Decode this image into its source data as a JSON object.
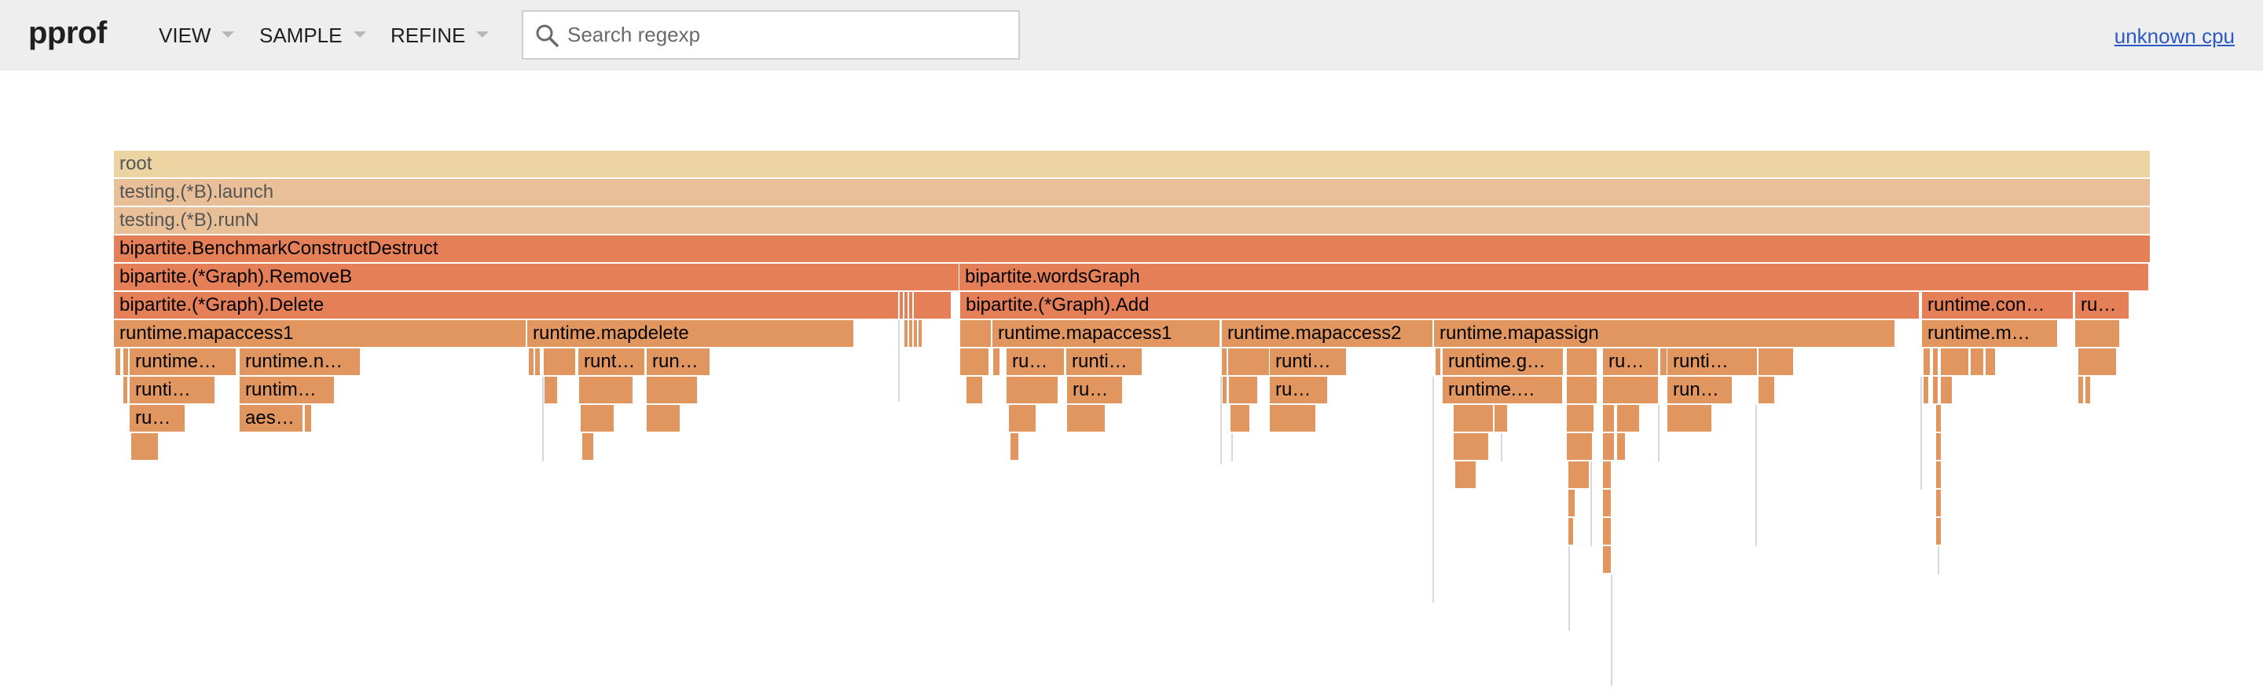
{
  "header": {
    "logo": "pprof",
    "menus": [
      {
        "label": "VIEW"
      },
      {
        "label": "SAMPLE"
      },
      {
        "label": "REFINE"
      }
    ],
    "search": {
      "placeholder": "Search regexp",
      "value": ""
    },
    "cpu_link": "unknown cpu"
  },
  "flame": {
    "frames": {
      "root": "root",
      "launch": "testing.(*B).launch",
      "runN": "testing.(*B).runN",
      "bench": "bipartite.BenchmarkConstructDestruct",
      "removeB": "bipartite.(*Graph).RemoveB",
      "wordsGraph": "bipartite.wordsGraph",
      "delete": "bipartite.(*Graph).Delete",
      "add": "bipartite.(*Graph).Add",
      "mapaccess1_a": "runtime.mapaccess1",
      "mapdelete": "runtime.mapdelete",
      "mapaccess1_b": "runtime.mapaccess1",
      "mapaccess2": "runtime.mapaccess2",
      "mapassign": "runtime.mapassign",
      "runtime_con": "runtime.con…",
      "ru_top": "ru…",
      "runtime_m": "runtime.m…",
      "r6_a": "runtime…",
      "r6_b": "runtime.n…",
      "r6_c": "runt…",
      "r6_d": "run…",
      "r6_e": "ru…",
      "r6_f": "runti…",
      "r6_g": "runti…",
      "r6_h": "runtime.g…",
      "r6_i": "ru…",
      "r6_j": "runti…",
      "r7_a": "runti…",
      "r7_b": "runtim…",
      "r7_c": "ru…",
      "r7_d": "ru…",
      "r7_e": "runtime.…",
      "r7_f": "run…",
      "r8_a": "ru…",
      "r8_b": "aes…"
    }
  },
  "colors": {
    "root": "#ebd3a2",
    "light": "#e9bf98",
    "hot": "#e47f58",
    "warm": "#e1955f",
    "thin": "#d9d9d9",
    "link": "#2a58c4"
  }
}
